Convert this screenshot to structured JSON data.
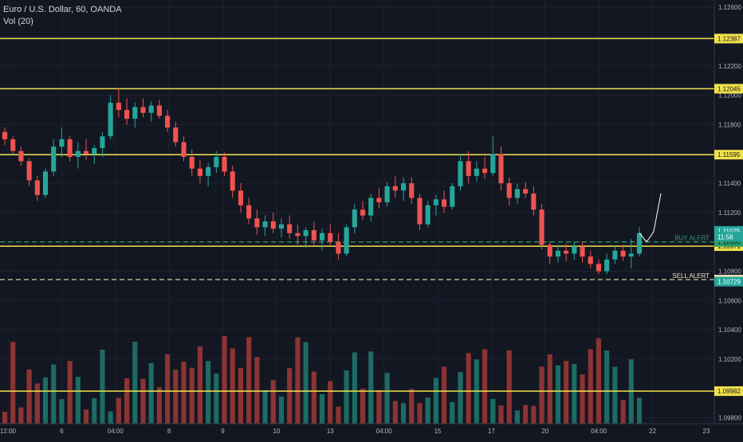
{
  "legend": {
    "symbol": "Euro / U.S. Dollar, 60, OANDA",
    "volume": "Vol (20)"
  },
  "colors": {
    "background": "#131722",
    "up": "#26a69a",
    "down": "#ef5350",
    "vol_up": "#1d6b65",
    "vol_down": "#8c3434",
    "hline": "#f0e24a",
    "alert_buy": "#2e9e6b",
    "alert_sell": "#e6e0b0",
    "grid": "#1e2230",
    "axis_text": "#b2b5be",
    "drawing": "#ffffff"
  },
  "chart_data": {
    "type": "candlestick",
    "title": "Euro / U.S. Dollar, 60, OANDA",
    "ylim": [
      1.0976,
      1.1265
    ],
    "y_ticks": [
      "1.12600",
      "1.12400",
      "1.12200",
      "1.12000",
      "1.11800",
      "1.11600",
      "1.11400",
      "1.11200",
      "1.11000",
      "1.10800",
      "1.10600",
      "1.10400",
      "1.10200",
      "1.10000",
      "1.09800"
    ],
    "x_ticks": [
      "12:00",
      "6",
      "04:00",
      "8",
      "9",
      "10",
      "13",
      "04:00",
      "15",
      "17",
      "20",
      "04:00",
      "22",
      "23"
    ],
    "horizontal_lines": [
      {
        "price": 1.12387,
        "label": "1.12387"
      },
      {
        "price": 1.12045,
        "label": "1.12045"
      },
      {
        "price": 1.11595,
        "label": "1.11595"
      },
      {
        "price": 1.10971,
        "label": "1.10971"
      },
      {
        "price": 1.09982,
        "label": "1.09982"
      }
    ],
    "alerts": [
      {
        "name": "BUY ALERT",
        "price": 1.11,
        "label": "1.11000",
        "style": "dashed",
        "color_key": "alert_buy"
      },
      {
        "name": "SELL ALERT",
        "price": 1.10743,
        "label": "1.10743",
        "style": "dashed",
        "color_key": "alert_sell"
      }
    ],
    "price_labels": [
      {
        "text": "1.11075",
        "price": 1.11075
      },
      {
        "text": "11:58",
        "price": 1.11035
      },
      {
        "text": "1.10729",
        "price": 1.10729
      }
    ],
    "ohlc": [
      [
        1.1175,
        1.1178,
        1.1166,
        1.117
      ],
      [
        1.117,
        1.1172,
        1.116,
        1.1162
      ],
      [
        1.1162,
        1.1165,
        1.1152,
        1.1155
      ],
      [
        1.1155,
        1.1157,
        1.1138,
        1.1142
      ],
      [
        1.1142,
        1.1145,
        1.1128,
        1.1132
      ],
      [
        1.1132,
        1.115,
        1.113,
        1.1148
      ],
      [
        1.1148,
        1.117,
        1.1145,
        1.1165
      ],
      [
        1.1165,
        1.1178,
        1.1158,
        1.117
      ],
      [
        1.117,
        1.1172,
        1.1155,
        1.1158
      ],
      [
        1.1158,
        1.1168,
        1.115,
        1.1162
      ],
      [
        1.1162,
        1.117,
        1.1156,
        1.116
      ],
      [
        1.116,
        1.1166,
        1.1153,
        1.1164
      ],
      [
        1.1164,
        1.1175,
        1.1158,
        1.1172
      ],
      [
        1.1172,
        1.12,
        1.117,
        1.1195
      ],
      [
        1.1195,
        1.1205,
        1.1185,
        1.119
      ],
      [
        1.119,
        1.1198,
        1.118,
        1.1184
      ],
      [
        1.1184,
        1.1195,
        1.1178,
        1.1192
      ],
      [
        1.1192,
        1.1198,
        1.1185,
        1.1188
      ],
      [
        1.1188,
        1.1196,
        1.1182,
        1.1193
      ],
      [
        1.1193,
        1.1197,
        1.1184,
        1.1186
      ],
      [
        1.1186,
        1.119,
        1.1175,
        1.1178
      ],
      [
        1.1178,
        1.1182,
        1.1165,
        1.1168
      ],
      [
        1.1168,
        1.1172,
        1.1155,
        1.1158
      ],
      [
        1.1158,
        1.1163,
        1.1145,
        1.115
      ],
      [
        1.115,
        1.1156,
        1.114,
        1.1145
      ],
      [
        1.1145,
        1.1154,
        1.1138,
        1.1151
      ],
      [
        1.1151,
        1.1162,
        1.1147,
        1.1158
      ],
      [
        1.1158,
        1.1161,
        1.1145,
        1.1148
      ],
      [
        1.1148,
        1.1152,
        1.113,
        1.1135
      ],
      [
        1.1135,
        1.114,
        1.112,
        1.1125
      ],
      [
        1.1125,
        1.113,
        1.1112,
        1.1116
      ],
      [
        1.1116,
        1.1122,
        1.1105,
        1.111
      ],
      [
        1.111,
        1.1118,
        1.1104,
        1.1114
      ],
      [
        1.1114,
        1.112,
        1.1106,
        1.1109
      ],
      [
        1.1109,
        1.1116,
        1.1103,
        1.1112
      ],
      [
        1.1112,
        1.1118,
        1.1102,
        1.1106
      ],
      [
        1.1106,
        1.1112,
        1.1098,
        1.1104
      ],
      [
        1.1104,
        1.111,
        1.1096,
        1.1108
      ],
      [
        1.1108,
        1.1114,
        1.1098,
        1.1101
      ],
      [
        1.1101,
        1.1109,
        1.1094,
        1.1106
      ],
      [
        1.1106,
        1.1112,
        1.1097,
        1.11
      ],
      [
        1.11,
        1.1106,
        1.1088,
        1.1092
      ],
      [
        1.1092,
        1.1112,
        1.109,
        1.111
      ],
      [
        1.111,
        1.1126,
        1.1106,
        1.1122
      ],
      [
        1.1122,
        1.1128,
        1.1115,
        1.1118
      ],
      [
        1.1118,
        1.1133,
        1.1114,
        1.113
      ],
      [
        1.113,
        1.1137,
        1.1123,
        1.1127
      ],
      [
        1.1127,
        1.1141,
        1.1124,
        1.1138
      ],
      [
        1.1138,
        1.1145,
        1.113,
        1.1135
      ],
      [
        1.1135,
        1.1144,
        1.1128,
        1.114
      ],
      [
        1.114,
        1.1144,
        1.1126,
        1.113
      ],
      [
        1.113,
        1.1133,
        1.1108,
        1.1112
      ],
      [
        1.1112,
        1.1128,
        1.111,
        1.1125
      ],
      [
        1.1125,
        1.1132,
        1.1118,
        1.1129
      ],
      [
        1.1129,
        1.1135,
        1.112,
        1.1124
      ],
      [
        1.1124,
        1.114,
        1.1122,
        1.1138
      ],
      [
        1.1138,
        1.116,
        1.1135,
        1.1155
      ],
      [
        1.1155,
        1.1162,
        1.114,
        1.1145
      ],
      [
        1.1145,
        1.1155,
        1.1141,
        1.115
      ],
      [
        1.115,
        1.1158,
        1.1143,
        1.1147
      ],
      [
        1.1147,
        1.1172,
        1.1145,
        1.116
      ],
      [
        1.116,
        1.1165,
        1.1135,
        1.114
      ],
      [
        1.114,
        1.1144,
        1.1125,
        1.113
      ],
      [
        1.113,
        1.114,
        1.1126,
        1.1136
      ],
      [
        1.1136,
        1.1141,
        1.113,
        1.1133
      ],
      [
        1.1133,
        1.1138,
        1.1118,
        1.1122
      ],
      [
        1.1122,
        1.1126,
        1.1095,
        1.1098
      ],
      [
        1.1098,
        1.11,
        1.1085,
        1.109
      ],
      [
        1.109,
        1.1098,
        1.1086,
        1.1094
      ],
      [
        1.1094,
        1.1099,
        1.1087,
        1.1092
      ],
      [
        1.1092,
        1.11,
        1.1088,
        1.1097
      ],
      [
        1.1097,
        1.11,
        1.1086,
        1.109
      ],
      [
        1.109,
        1.1094,
        1.1082,
        1.1085
      ],
      [
        1.1085,
        1.1088,
        1.1078,
        1.108
      ],
      [
        1.108,
        1.1092,
        1.1078,
        1.1088
      ],
      [
        1.1088,
        1.1097,
        1.1085,
        1.1094
      ],
      [
        1.1094,
        1.1098,
        1.1087,
        1.109
      ],
      [
        1.109,
        1.1102,
        1.1082,
        1.1092
      ],
      [
        1.1092,
        1.111,
        1.109,
        1.1106
      ]
    ],
    "drawing_path": [
      {
        "label": "projection",
        "points": [
          [
            1.1092,
            1.1106
          ],
          [
            1.1108,
            1.11
          ],
          [
            1.1116,
            1.1107
          ],
          [
            1.1133,
            1.1133
          ]
        ]
      }
    ]
  }
}
